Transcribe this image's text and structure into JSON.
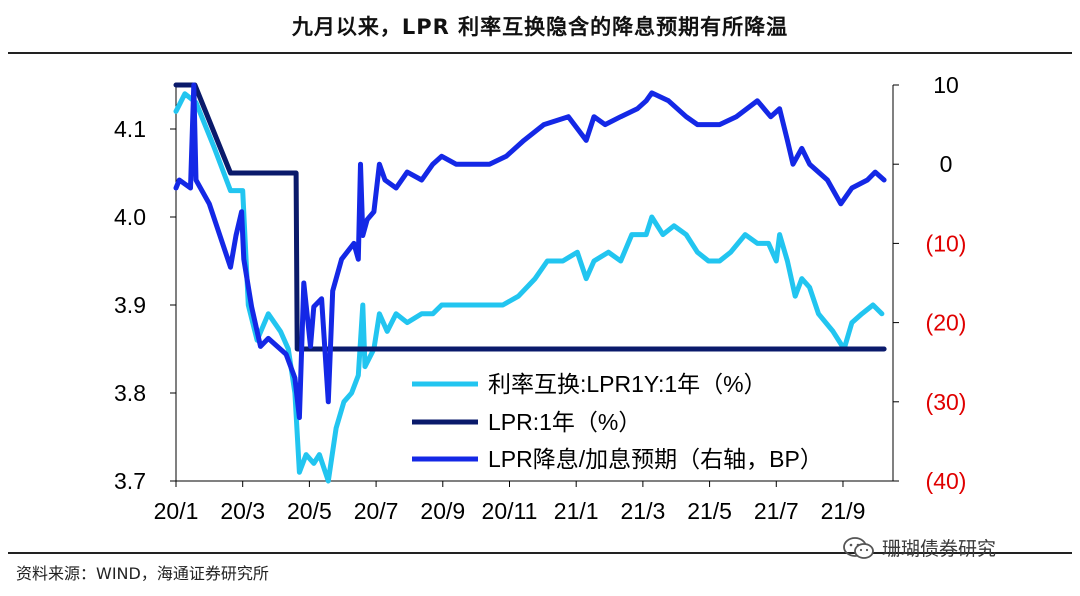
{
  "title": "九月以来，LPR 利率互换隐含的降息预期有所降温",
  "source": "资料来源：WIND，海通证券研究所",
  "watermark": "珊瑚债券研究",
  "watermark_icon": "wechat-icon",
  "colors": {
    "swap": "#22C5F0",
    "lpr": "#0A1A6B",
    "expect": "#1428E6",
    "right_axis_negative": "#E00000",
    "axis": "#000000"
  },
  "chart_data": {
    "type": "line",
    "title": "九月以来，LPR 利率互换隐含的降息预期有所降温",
    "xlabel": "",
    "ylabel": "",
    "x_range": [
      "2020-01-02",
      "2021-10-08"
    ],
    "x_tick_labels": [
      "20/1",
      "20/3",
      "20/5",
      "20/7",
      "20/9",
      "20/11",
      "21/1",
      "21/3",
      "21/5",
      "21/7",
      "21/9"
    ],
    "x_tick_dates": [
      "2020-01-02",
      "2020-03-02",
      "2020-05-01",
      "2020-06-30",
      "2020-08-29",
      "2020-10-28",
      "2020-12-27",
      "2021-02-25",
      "2021-04-26",
      "2021-06-25",
      "2021-08-24"
    ],
    "y_left": {
      "range": [
        3.7,
        4.15
      ],
      "ticks": [
        3.7,
        3.8,
        3.9,
        4.0,
        4.1
      ],
      "tick_labels": [
        "3.7",
        "3.8",
        "3.9",
        "4.0",
        "4.1"
      ]
    },
    "y_right": {
      "range": [
        -40,
        10
      ],
      "ticks": [
        10,
        0,
        -10,
        -20,
        -30,
        -40
      ],
      "tick_labels": [
        "10",
        "0",
        "(10)",
        "(20)",
        "(30)",
        "(40)"
      ]
    },
    "legend_position": "bottom-right-inside",
    "series": [
      {
        "name": "利率互换:LPR1Y:1年（%）",
        "axis": "left",
        "color": "#22C5F0",
        "points": [
          [
            "2020-01-02",
            4.12
          ],
          [
            "2020-01-10",
            4.14
          ],
          [
            "2020-01-20",
            4.13
          ],
          [
            "2020-02-05",
            4.08
          ],
          [
            "2020-02-20",
            4.03
          ],
          [
            "2020-03-02",
            4.03
          ],
          [
            "2020-03-07",
            3.9
          ],
          [
            "2020-03-15",
            3.86
          ],
          [
            "2020-03-25",
            3.89
          ],
          [
            "2020-04-05",
            3.87
          ],
          [
            "2020-04-12",
            3.85
          ],
          [
            "2020-04-18",
            3.8
          ],
          [
            "2020-04-22",
            3.71
          ],
          [
            "2020-04-28",
            3.73
          ],
          [
            "2020-05-05",
            3.72
          ],
          [
            "2020-05-10",
            3.73
          ],
          [
            "2020-05-18",
            3.7
          ],
          [
            "2020-05-25",
            3.76
          ],
          [
            "2020-06-01",
            3.79
          ],
          [
            "2020-06-08",
            3.8
          ],
          [
            "2020-06-14",
            3.82
          ],
          [
            "2020-06-18",
            3.9
          ],
          [
            "2020-06-20",
            3.83
          ],
          [
            "2020-06-28",
            3.85
          ],
          [
            "2020-07-03",
            3.89
          ],
          [
            "2020-07-10",
            3.87
          ],
          [
            "2020-07-18",
            3.89
          ],
          [
            "2020-07-28",
            3.88
          ],
          [
            "2020-08-10",
            3.89
          ],
          [
            "2020-08-20",
            3.89
          ],
          [
            "2020-08-28",
            3.9
          ],
          [
            "2020-09-10",
            3.9
          ],
          [
            "2020-09-25",
            3.9
          ],
          [
            "2020-10-10",
            3.9
          ],
          [
            "2020-10-22",
            3.9
          ],
          [
            "2020-11-05",
            3.91
          ],
          [
            "2020-11-20",
            3.93
          ],
          [
            "2020-12-01",
            3.95
          ],
          [
            "2020-12-15",
            3.95
          ],
          [
            "2020-12-28",
            3.96
          ],
          [
            "2021-01-05",
            3.93
          ],
          [
            "2021-01-12",
            3.95
          ],
          [
            "2021-01-25",
            3.96
          ],
          [
            "2021-02-05",
            3.95
          ],
          [
            "2021-02-15",
            3.98
          ],
          [
            "2021-02-28",
            3.98
          ],
          [
            "2021-03-05",
            4.0
          ],
          [
            "2021-03-15",
            3.98
          ],
          [
            "2021-03-25",
            3.99
          ],
          [
            "2021-04-05",
            3.98
          ],
          [
            "2021-04-15",
            3.96
          ],
          [
            "2021-04-25",
            3.95
          ],
          [
            "2021-05-05",
            3.95
          ],
          [
            "2021-05-15",
            3.96
          ],
          [
            "2021-05-28",
            3.98
          ],
          [
            "2021-06-08",
            3.97
          ],
          [
            "2021-06-18",
            3.97
          ],
          [
            "2021-06-25",
            3.95
          ],
          [
            "2021-06-28",
            3.98
          ],
          [
            "2021-07-05",
            3.95
          ],
          [
            "2021-07-12",
            3.91
          ],
          [
            "2021-07-18",
            3.93
          ],
          [
            "2021-07-25",
            3.92
          ],
          [
            "2021-08-02",
            3.89
          ],
          [
            "2021-08-15",
            3.87
          ],
          [
            "2021-08-25",
            3.85
          ],
          [
            "2021-09-01",
            3.88
          ],
          [
            "2021-09-10",
            3.89
          ],
          [
            "2021-09-20",
            3.9
          ],
          [
            "2021-09-28",
            3.89
          ]
        ]
      },
      {
        "name": "LPR:1年（%）",
        "axis": "left",
        "color": "#0A1A6B",
        "points": [
          [
            "2020-01-02",
            4.15
          ],
          [
            "2020-01-19",
            4.15
          ],
          [
            "2020-02-20",
            4.05
          ],
          [
            "2020-04-19",
            4.05
          ],
          [
            "2020-04-20",
            3.85
          ],
          [
            "2021-09-30",
            3.85
          ]
        ]
      },
      {
        "name": "LPR降息/加息预期（右轴，BP）",
        "axis": "right",
        "color": "#1428E6",
        "points": [
          [
            "2020-01-02",
            -3
          ],
          [
            "2020-01-05",
            -2
          ],
          [
            "2020-01-15",
            -3
          ],
          [
            "2020-01-18",
            10
          ],
          [
            "2020-01-20",
            -2
          ],
          [
            "2020-02-01",
            -5
          ],
          [
            "2020-02-20",
            -13
          ],
          [
            "2020-02-25",
            -9
          ],
          [
            "2020-03-01",
            -6
          ],
          [
            "2020-03-03",
            -12
          ],
          [
            "2020-03-10",
            -18
          ],
          [
            "2020-03-18",
            -23
          ],
          [
            "2020-03-25",
            -22
          ],
          [
            "2020-04-10",
            -24
          ],
          [
            "2020-04-18",
            -27
          ],
          [
            "2020-04-22",
            -32
          ],
          [
            "2020-04-26",
            -15
          ],
          [
            "2020-05-02",
            -23
          ],
          [
            "2020-05-05",
            -18
          ],
          [
            "2020-05-12",
            -17
          ],
          [
            "2020-05-18",
            -30
          ],
          [
            "2020-05-22",
            -16
          ],
          [
            "2020-05-30",
            -12
          ],
          [
            "2020-06-10",
            -10
          ],
          [
            "2020-06-14",
            -12
          ],
          [
            "2020-06-16",
            0
          ],
          [
            "2020-06-18",
            -9
          ],
          [
            "2020-06-22",
            -7
          ],
          [
            "2020-06-28",
            -6
          ],
          [
            "2020-07-03",
            0
          ],
          [
            "2020-07-08",
            -2
          ],
          [
            "2020-07-18",
            -3
          ],
          [
            "2020-07-28",
            -1
          ],
          [
            "2020-08-10",
            -2
          ],
          [
            "2020-08-20",
            0
          ],
          [
            "2020-08-28",
            1
          ],
          [
            "2020-09-10",
            0
          ],
          [
            "2020-09-25",
            0
          ],
          [
            "2020-10-10",
            0
          ],
          [
            "2020-10-25",
            1
          ],
          [
            "2020-11-10",
            3
          ],
          [
            "2020-11-28",
            5
          ],
          [
            "2020-12-20",
            6
          ],
          [
            "2021-01-05",
            3
          ],
          [
            "2021-01-12",
            6
          ],
          [
            "2021-01-22",
            5
          ],
          [
            "2021-02-05",
            6
          ],
          [
            "2021-02-20",
            7
          ],
          [
            "2021-02-28",
            8
          ],
          [
            "2021-03-05",
            9
          ],
          [
            "2021-03-20",
            8
          ],
          [
            "2021-04-05",
            6
          ],
          [
            "2021-04-15",
            5
          ],
          [
            "2021-05-05",
            5
          ],
          [
            "2021-05-20",
            6
          ],
          [
            "2021-06-08",
            8
          ],
          [
            "2021-06-20",
            6
          ],
          [
            "2021-06-28",
            7
          ],
          [
            "2021-07-05",
            3
          ],
          [
            "2021-07-10",
            0
          ],
          [
            "2021-07-18",
            2
          ],
          [
            "2021-07-25",
            0
          ],
          [
            "2021-08-10",
            -2
          ],
          [
            "2021-08-22",
            -5
          ],
          [
            "2021-09-01",
            -3
          ],
          [
            "2021-09-15",
            -2
          ],
          [
            "2021-09-22",
            -1
          ],
          [
            "2021-09-30",
            -2
          ]
        ]
      }
    ]
  }
}
